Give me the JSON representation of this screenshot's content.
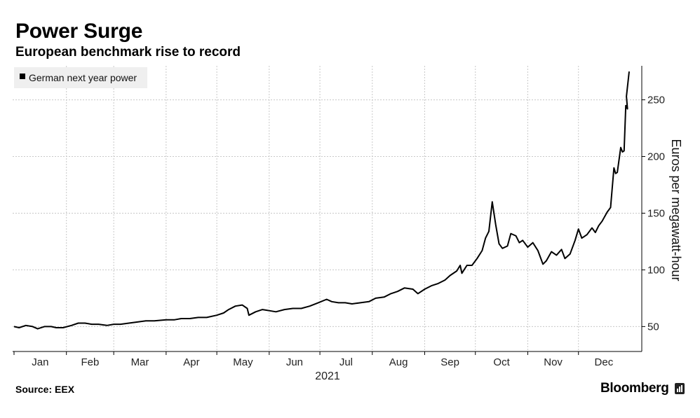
{
  "title": "Power Surge",
  "subtitle": "European benchmark rise to record",
  "source": "Source: EEX",
  "brand": "Bloomberg",
  "icons": {
    "brand_mark": "bloomberg-terminal-icon"
  },
  "colors": {
    "line": "#000000",
    "grid": "#c8c8c8",
    "legend_bg": "#efefef"
  },
  "chart_data": {
    "type": "line",
    "legend_position": "top-left",
    "grid": true,
    "xlabel": "2021",
    "ylabel": "Euros per megawatt-hour",
    "x_ticks": [
      "Jan",
      "Feb",
      "Mar",
      "Apr",
      "May",
      "Jun",
      "Jul",
      "Aug",
      "Sep",
      "Oct",
      "Nov",
      "Dec"
    ],
    "y_ticks": [
      50,
      100,
      150,
      200,
      250
    ],
    "ylim": [
      28,
      280
    ],
    "xlim": [
      "2021-01-01",
      "2021-12-31"
    ],
    "series": [
      {
        "name": "German next year power",
        "points": [
          [
            "2021-01-01",
            50
          ],
          [
            "2021-01-04",
            49
          ],
          [
            "2021-01-08",
            51
          ],
          [
            "2021-01-12",
            50
          ],
          [
            "2021-01-15",
            48
          ],
          [
            "2021-01-19",
            50
          ],
          [
            "2021-01-23",
            50
          ],
          [
            "2021-01-26",
            49
          ],
          [
            "2021-01-30",
            49
          ],
          [
            "2021-02-04",
            51
          ],
          [
            "2021-02-08",
            53
          ],
          [
            "2021-02-12",
            53
          ],
          [
            "2021-02-16",
            52
          ],
          [
            "2021-02-20",
            52
          ],
          [
            "2021-02-25",
            51
          ],
          [
            "2021-03-01",
            52
          ],
          [
            "2021-03-05",
            52
          ],
          [
            "2021-03-10",
            53
          ],
          [
            "2021-03-15",
            54
          ],
          [
            "2021-03-20",
            55
          ],
          [
            "2021-03-25",
            55
          ],
          [
            "2021-04-01",
            56
          ],
          [
            "2021-04-06",
            56
          ],
          [
            "2021-04-10",
            57
          ],
          [
            "2021-04-15",
            57
          ],
          [
            "2021-04-20",
            58
          ],
          [
            "2021-04-25",
            58
          ],
          [
            "2021-05-01",
            60
          ],
          [
            "2021-05-05",
            62
          ],
          [
            "2021-05-08",
            65
          ],
          [
            "2021-05-12",
            68
          ],
          [
            "2021-05-16",
            69
          ],
          [
            "2021-05-19",
            66
          ],
          [
            "2021-05-20",
            60
          ],
          [
            "2021-05-24",
            63
          ],
          [
            "2021-05-28",
            65
          ],
          [
            "2021-06-01",
            64
          ],
          [
            "2021-06-05",
            63
          ],
          [
            "2021-06-10",
            65
          ],
          [
            "2021-06-15",
            66
          ],
          [
            "2021-06-20",
            66
          ],
          [
            "2021-06-25",
            68
          ],
          [
            "2021-06-30",
            71
          ],
          [
            "2021-07-05",
            74
          ],
          [
            "2021-07-08",
            72
          ],
          [
            "2021-07-12",
            71
          ],
          [
            "2021-07-16",
            71
          ],
          [
            "2021-07-20",
            70
          ],
          [
            "2021-07-25",
            71
          ],
          [
            "2021-07-30",
            72
          ],
          [
            "2021-08-03",
            75
          ],
          [
            "2021-08-08",
            76
          ],
          [
            "2021-08-12",
            79
          ],
          [
            "2021-08-16",
            81
          ],
          [
            "2021-08-20",
            84
          ],
          [
            "2021-08-25",
            83
          ],
          [
            "2021-08-28",
            79
          ],
          [
            "2021-09-01",
            83
          ],
          [
            "2021-09-05",
            86
          ],
          [
            "2021-09-09",
            88
          ],
          [
            "2021-09-13",
            91
          ],
          [
            "2021-09-16",
            95
          ],
          [
            "2021-09-20",
            99
          ],
          [
            "2021-09-22",
            104
          ],
          [
            "2021-09-23",
            97
          ],
          [
            "2021-09-26",
            104
          ],
          [
            "2021-09-29",
            104
          ],
          [
            "2021-10-02",
            110
          ],
          [
            "2021-10-05",
            117
          ],
          [
            "2021-10-07",
            128
          ],
          [
            "2021-10-09",
            134
          ],
          [
            "2021-10-11",
            160
          ],
          [
            "2021-10-13",
            140
          ],
          [
            "2021-10-15",
            123
          ],
          [
            "2021-10-17",
            119
          ],
          [
            "2021-10-20",
            121
          ],
          [
            "2021-10-22",
            132
          ],
          [
            "2021-10-25",
            130
          ],
          [
            "2021-10-27",
            124
          ],
          [
            "2021-10-29",
            126
          ],
          [
            "2021-11-01",
            120
          ],
          [
            "2021-11-04",
            124
          ],
          [
            "2021-11-07",
            117
          ],
          [
            "2021-11-10",
            105
          ],
          [
            "2021-11-12",
            108
          ],
          [
            "2021-11-15",
            116
          ],
          [
            "2021-11-18",
            113
          ],
          [
            "2021-11-21",
            118
          ],
          [
            "2021-11-23",
            110
          ],
          [
            "2021-11-26",
            114
          ],
          [
            "2021-11-29",
            126
          ],
          [
            "2021-12-01",
            136
          ],
          [
            "2021-12-03",
            128
          ],
          [
            "2021-12-06",
            131
          ],
          [
            "2021-12-09",
            137
          ],
          [
            "2021-12-11",
            133
          ],
          [
            "2021-12-13",
            139
          ],
          [
            "2021-12-15",
            143
          ],
          [
            "2021-12-18",
            151
          ],
          [
            "2021-12-20",
            155
          ],
          [
            "2021-12-22",
            190
          ],
          [
            "2021-12-23",
            185
          ],
          [
            "2021-12-24",
            186
          ],
          [
            "2021-12-26",
            208
          ],
          [
            "2021-12-27",
            204
          ],
          [
            "2021-12-28",
            205
          ],
          [
            "2021-12-29",
            245
          ],
          [
            "2021-12-30",
            242
          ],
          [
            "2021-12-30",
            253
          ],
          [
            "2021-12-31",
            275
          ]
        ]
      }
    ]
  }
}
